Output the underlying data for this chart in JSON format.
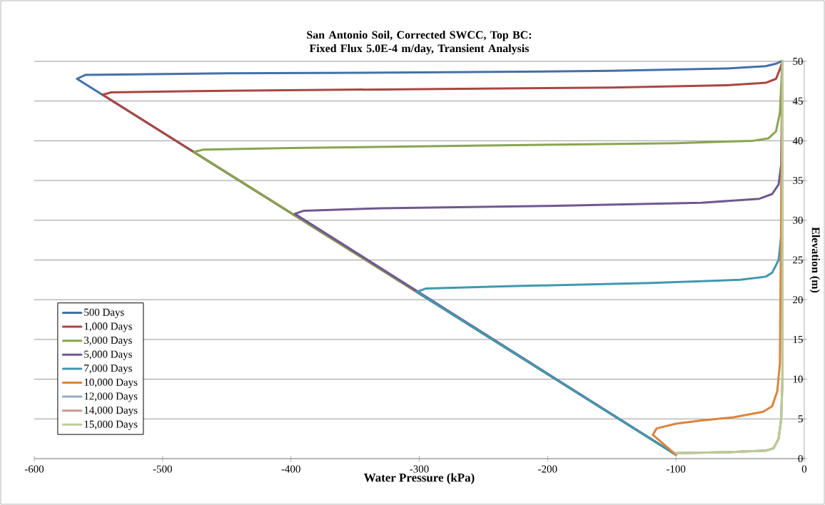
{
  "chart_data": {
    "type": "line",
    "title": "San Antonio Soil, Corrected SWCC, Top BC: Fixed Flux 5.0E-4 m/day, Transient Analysis",
    "xlabel": "Water Pressure (kPa)",
    "ylabel": "Elevation  (m)",
    "xlim": [
      -600,
      0
    ],
    "xticks": [
      -600,
      -500,
      -400,
      -300,
      -200,
      -100,
      0
    ],
    "ylim": [
      0,
      50
    ],
    "yticks": [
      0,
      5,
      10,
      15,
      20,
      25,
      30,
      35,
      40,
      45,
      50
    ],
    "grid": "y",
    "legend": "bottom left",
    "marker": "none",
    "line_style": "solid",
    "series": [
      {
        "name": "500 Days",
        "color": "#4470a8",
        "x": [
          -100,
          -566.7,
          -560,
          -450,
          -300,
          -150,
          -60,
          -30,
          -22,
          -18,
          -17
        ],
        "values": [
          0.5,
          47.8,
          48.3,
          48.5,
          48.6,
          48.8,
          49.1,
          49.4,
          49.7,
          50,
          50
        ]
      },
      {
        "name": "1,000 Days",
        "color": "#aa4643",
        "x": [
          -100,
          -546.7,
          -540,
          -450,
          -300,
          -150,
          -60,
          -30,
          -22,
          -19,
          -17
        ],
        "values": [
          0.5,
          45.8,
          46.1,
          46.3,
          46.5,
          46.7,
          47.0,
          47.3,
          47.8,
          49,
          50
        ]
      },
      {
        "name": "3,000 Days",
        "color": "#89a54e",
        "x": [
          -100,
          -475.6,
          -468,
          -400,
          -250,
          -100,
          -40,
          -28,
          -22,
          -19,
          -17
        ],
        "values": [
          0.5,
          38.6,
          38.9,
          39.1,
          39.4,
          39.7,
          40.0,
          40.3,
          41.2,
          43.5,
          50
        ]
      },
      {
        "name": "5,000 Days",
        "color": "#71588f",
        "x": [
          -100,
          -397,
          -390,
          -330,
          -200,
          -80,
          -35,
          -25,
          -20,
          -18,
          -17
        ],
        "values": [
          0.5,
          30.8,
          31.2,
          31.5,
          31.8,
          32.2,
          32.7,
          33.3,
          34.5,
          37,
          50
        ]
      },
      {
        "name": "7,000 Days",
        "color": "#4198af",
        "x": [
          -100,
          -302,
          -295,
          -230,
          -120,
          -50,
          -30,
          -25,
          -20,
          -18,
          -17
        ],
        "values": [
          0.5,
          21.0,
          21.4,
          21.7,
          22.1,
          22.5,
          22.9,
          23.4,
          25,
          28,
          50
        ]
      },
      {
        "name": "10,000 Days",
        "color": "#db843d",
        "x": [
          -100,
          -118,
          -115,
          -100,
          -80,
          -55,
          -32,
          -25,
          -21,
          -19,
          -17
        ],
        "values": [
          0.5,
          3.0,
          3.8,
          4.4,
          4.8,
          5.2,
          5.9,
          6.6,
          8.5,
          12,
          50
        ]
      },
      {
        "name": "12,000 Days",
        "color": "#93a9cf",
        "x": [
          -100,
          -60,
          -30,
          -24,
          -20,
          -18,
          -17,
          -17
        ],
        "values": [
          0.7,
          0.8,
          1.0,
          1.3,
          2.5,
          5,
          10,
          50
        ]
      },
      {
        "name": "14,000 Days",
        "color": "#d19392",
        "x": [
          -100,
          -60,
          -30,
          -24,
          -20,
          -18,
          -17,
          -17
        ],
        "values": [
          0.7,
          0.8,
          1.0,
          1.3,
          2.5,
          5,
          10,
          50
        ]
      },
      {
        "name": "15,000 Days",
        "color": "#b9cd96",
        "x": [
          -100,
          -60,
          -30,
          -24,
          -20,
          -18,
          -17,
          -17
        ],
        "values": [
          0.7,
          0.8,
          1.0,
          1.3,
          2.5,
          5,
          10,
          50
        ]
      }
    ]
  }
}
